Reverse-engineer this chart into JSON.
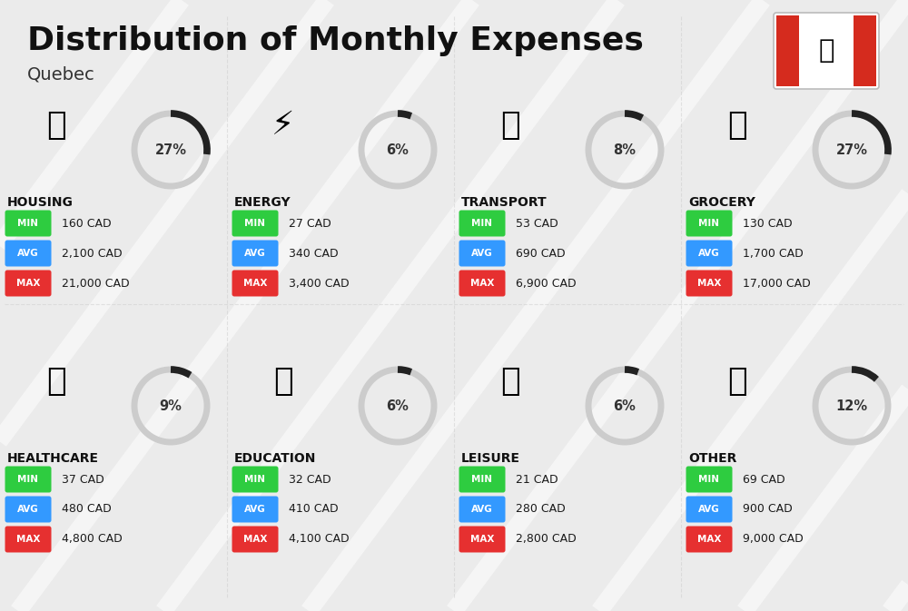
{
  "title": "Distribution of Monthly Expenses",
  "subtitle": "Quebec",
  "background_color": "#ebebeb",
  "categories": [
    {
      "name": "HOUSING",
      "percent": 27,
      "min_val": "160 CAD",
      "avg_val": "2,100 CAD",
      "max_val": "21,000 CAD",
      "row": 0,
      "col": 0
    },
    {
      "name": "ENERGY",
      "percent": 6,
      "min_val": "27 CAD",
      "avg_val": "340 CAD",
      "max_val": "3,400 CAD",
      "row": 0,
      "col": 1
    },
    {
      "name": "TRANSPORT",
      "percent": 8,
      "min_val": "53 CAD",
      "avg_val": "690 CAD",
      "max_val": "6,900 CAD",
      "row": 0,
      "col": 2
    },
    {
      "name": "GROCERY",
      "percent": 27,
      "min_val": "130 CAD",
      "avg_val": "1,700 CAD",
      "max_val": "17,000 CAD",
      "row": 0,
      "col": 3
    },
    {
      "name": "HEALTHCARE",
      "percent": 9,
      "min_val": "37 CAD",
      "avg_val": "480 CAD",
      "max_val": "4,800 CAD",
      "row": 1,
      "col": 0
    },
    {
      "name": "EDUCATION",
      "percent": 6,
      "min_val": "32 CAD",
      "avg_val": "410 CAD",
      "max_val": "4,100 CAD",
      "row": 1,
      "col": 1
    },
    {
      "name": "LEISURE",
      "percent": 6,
      "min_val": "21 CAD",
      "avg_val": "280 CAD",
      "max_val": "2,800 CAD",
      "row": 1,
      "col": 2
    },
    {
      "name": "OTHER",
      "percent": 12,
      "min_val": "69 CAD",
      "avg_val": "900 CAD",
      "max_val": "9,000 CAD",
      "row": 1,
      "col": 3
    }
  ],
  "min_color": "#2ecc40",
  "avg_color": "#3399ff",
  "max_color": "#e63030",
  "donut_filled_color": "#222222",
  "donut_empty_color": "#cccccc",
  "flag_red": "#d52b1e",
  "title_fontsize": 26,
  "subtitle_fontsize": 14,
  "category_fontsize": 10,
  "value_fontsize": 9,
  "badge_fontsize": 7.5
}
